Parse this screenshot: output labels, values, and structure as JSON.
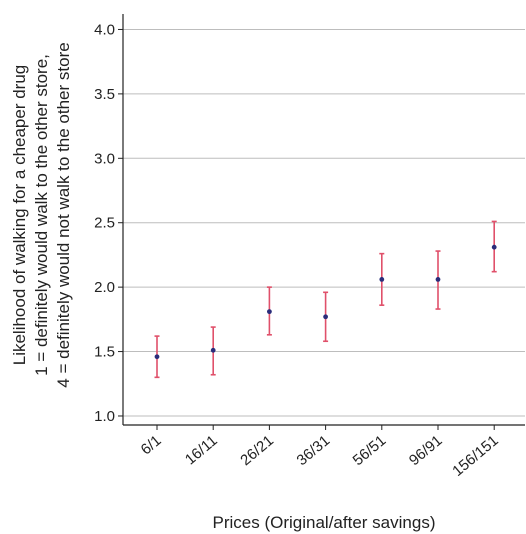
{
  "chart_data": {
    "type": "scatter",
    "subtype": "error-bar",
    "title": "",
    "xlabel": "Prices (Original/after savings)",
    "ylabel_lines": [
      "Likelihood of walking for a cheaper drug",
      "1 = definitely would walk to the other store,",
      "4 = definitely would not walk to the other store"
    ],
    "categories": [
      "6/1",
      "16/11",
      "26/21",
      "36/31",
      "56/51",
      "96/91",
      "156/151"
    ],
    "values": [
      1.46,
      1.51,
      1.81,
      1.77,
      2.06,
      2.06,
      2.31
    ],
    "lower": [
      1.3,
      1.32,
      1.63,
      1.58,
      1.86,
      1.83,
      2.12
    ],
    "upper": [
      1.62,
      1.69,
      2.0,
      1.96,
      2.26,
      2.28,
      2.51
    ],
    "yticks": [
      1.0,
      1.5,
      2.0,
      2.5,
      3.0,
      3.5,
      4.0
    ],
    "ytick_labels": [
      "1.0",
      "1.5",
      "2.0",
      "2.5",
      "3.0",
      "3.5",
      "4.0"
    ],
    "ylim": [
      0.93,
      4.12
    ],
    "grid": "horizontal",
    "legend": "none",
    "colors": {
      "point": "#2b2d7a",
      "errorbar": "#e0506a",
      "grid": "#bdbdbd",
      "axis": "#222222"
    }
  }
}
